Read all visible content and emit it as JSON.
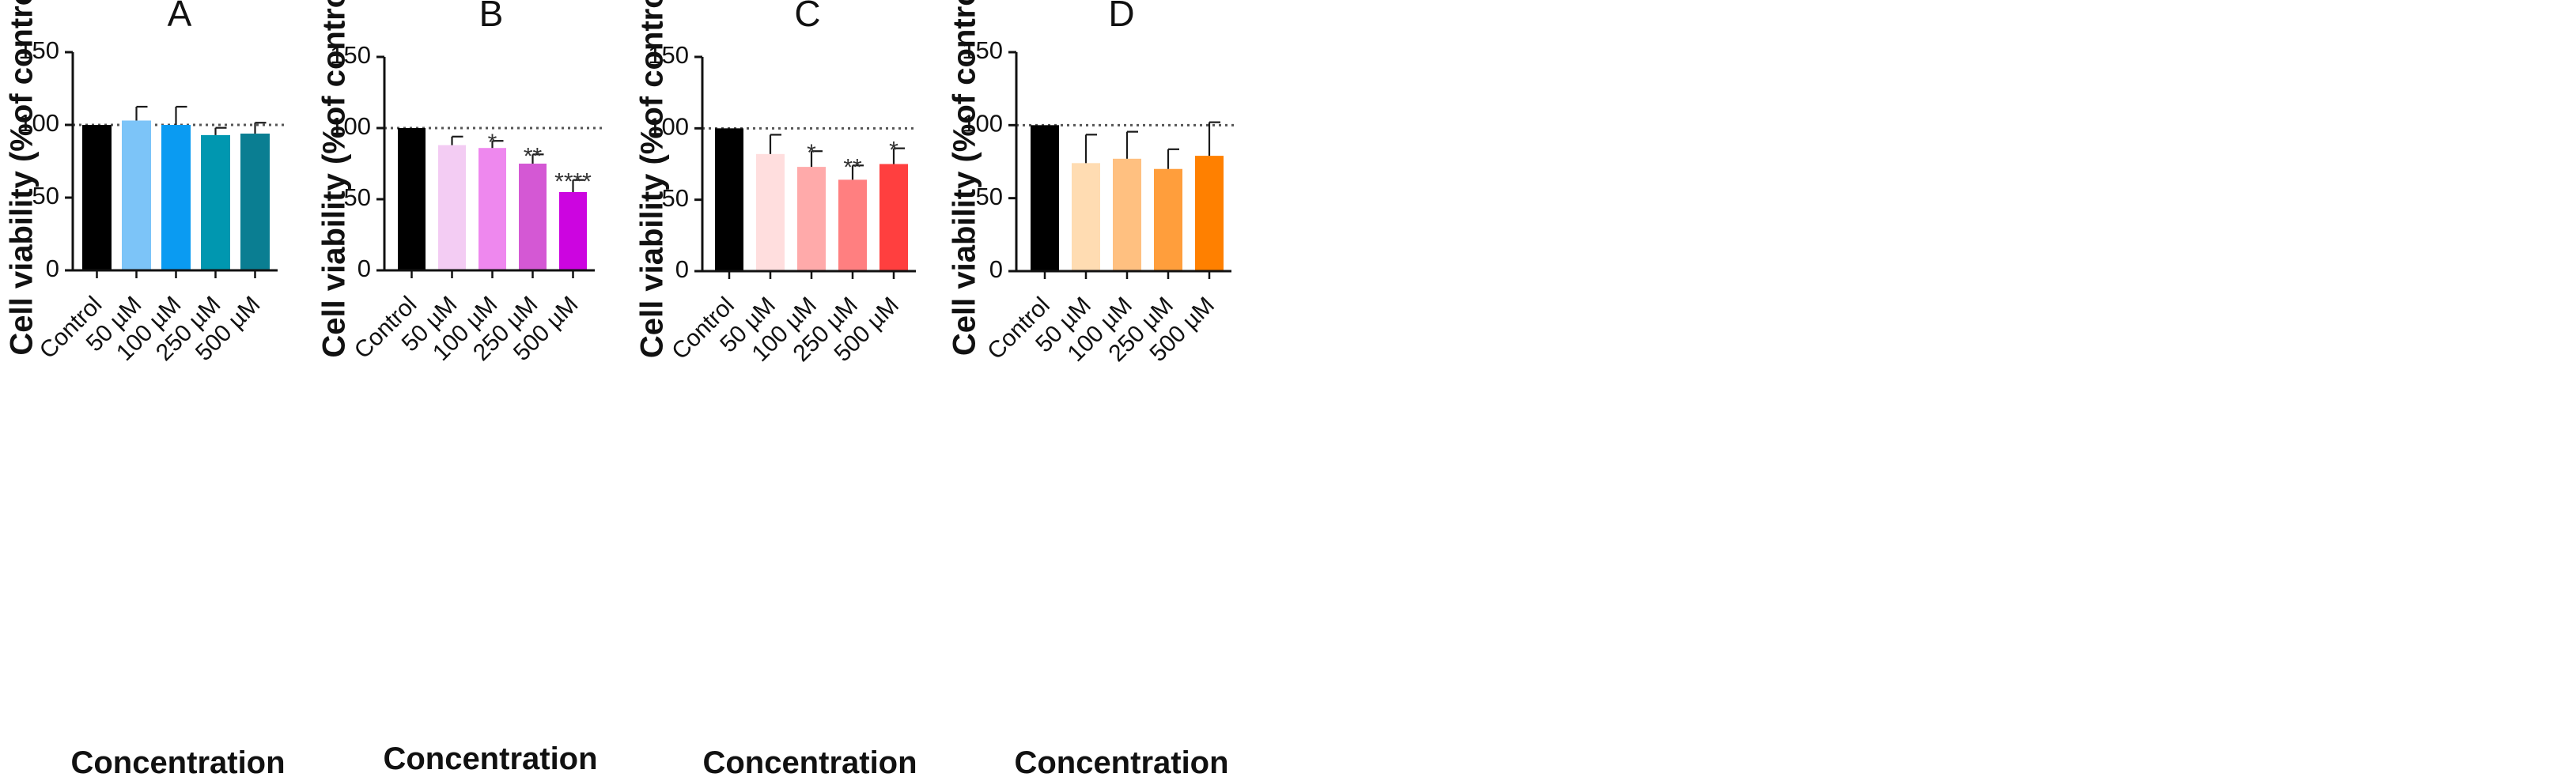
{
  "chart_data": [
    {
      "panel": "A",
      "type": "bar",
      "ylabel": "Cell viability (%of control)",
      "xlabel": "Concentration",
      "ylim": [
        0,
        150
      ],
      "yticks": [
        "0",
        "50",
        "100",
        "150"
      ],
      "reference_line": 100,
      "categories": [
        "Control",
        "50 µM",
        "100 µM",
        "250 µM",
        "500 µM"
      ],
      "values": [
        100,
        103,
        100,
        93,
        94
      ],
      "errors": [
        0,
        9.5,
        12.5,
        5,
        7.5
      ],
      "significance": [
        "",
        "",
        "",
        "",
        ""
      ],
      "colors": [
        "#000000",
        "#7cc4f8",
        "#0a9bf2",
        "#0097b0",
        "#0a7e92"
      ]
    },
    {
      "panel": "B",
      "type": "bar",
      "ylabel": "Cell viability (%of control)",
      "xlabel": "Concentration",
      "ylim": [
        0,
        150
      ],
      "yticks": [
        "0",
        "50",
        "100",
        "150"
      ],
      "reference_line": 100,
      "categories": [
        "Control",
        "50 µM",
        "100 µM",
        "250 µM",
        "500 µM"
      ],
      "values": [
        100,
        88,
        86,
        75,
        55
      ],
      "errors": [
        0,
        6,
        5,
        6.5,
        8.5
      ],
      "significance": [
        "",
        "",
        "*",
        "**",
        "****"
      ],
      "colors": [
        "#000000",
        "#f3ccf3",
        "#ee88ee",
        "#d458d4",
        "#cc05e0"
      ]
    },
    {
      "panel": "C",
      "type": "bar",
      "ylabel": "Cell viability (%of control)",
      "xlabel": "Concentration",
      "ylim": [
        0,
        150
      ],
      "yticks": [
        "0",
        "50",
        "100",
        "150"
      ],
      "reference_line": 100,
      "categories": [
        "Control",
        "50 µM",
        "100 µM",
        "250 µM",
        "500 µM"
      ],
      "values": [
        100,
        82,
        73,
        64,
        75
      ],
      "errors": [
        0,
        13.5,
        11,
        10,
        11
      ],
      "significance": [
        "",
        "",
        "*",
        "**",
        "*"
      ],
      "colors": [
        "#000000",
        "#ffdede",
        "#ffaaaa",
        "#ff7f80",
        "#ff3f3f"
      ]
    },
    {
      "panel": "D",
      "type": "bar",
      "ylabel": "Cell viability (%of control)",
      "xlabel": "Concentration",
      "ylim": [
        0,
        150
      ],
      "yticks": [
        "0",
        "50",
        "100",
        "150"
      ],
      "reference_line": 100,
      "categories": [
        "Control",
        "50 µM",
        "100 µM",
        "250 µM",
        "500 µM"
      ],
      "values": [
        100,
        74,
        77,
        70,
        79
      ],
      "errors": [
        0,
        19.5,
        18.5,
        13.5,
        23
      ],
      "significance": [
        "",
        "",
        "",
        "",
        ""
      ],
      "colors": [
        "#000000",
        "#ffdcb2",
        "#ffc080",
        "#ff9e3c",
        "#ff8000"
      ]
    }
  ]
}
